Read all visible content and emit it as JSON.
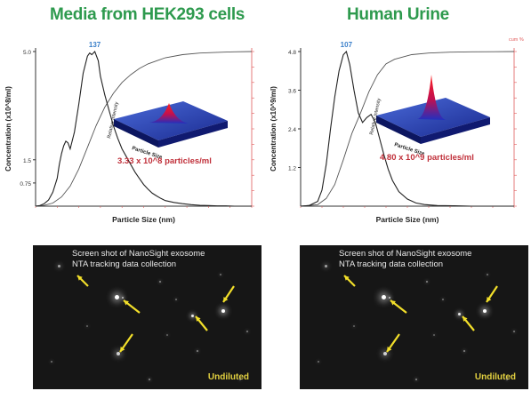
{
  "chart_data": [
    {
      "type": "line",
      "title": "Media from HEK293 cells",
      "xlabel": "Particle Size (nm)",
      "ylabel": "Concentration (x10^8/ml)",
      "y2label": "",
      "xlim": [
        0,
        500
      ],
      "ylim": [
        0,
        5.0
      ],
      "y_ticks": [
        "0.75",
        "1.5",
        "5.0"
      ],
      "peak_label": "137",
      "annotation": "3.33 x 10^8 particles/ml",
      "inset_labels": [
        "Relative Intensity",
        "Particle Size"
      ],
      "series": [
        {
          "values_x": [
            0,
            10,
            20,
            30,
            40,
            50,
            55,
            60,
            65,
            70,
            75,
            80,
            90,
            100,
            110,
            120,
            125,
            130,
            137,
            145,
            150,
            160,
            170,
            180,
            190,
            200,
            210,
            220,
            230,
            240,
            250,
            260,
            270,
            280,
            290,
            300,
            320,
            340,
            360,
            380,
            400,
            420,
            440,
            460,
            480,
            500
          ],
          "values_y": [
            0,
            0.02,
            0.08,
            0.2,
            0.45,
            0.9,
            1.35,
            1.7,
            1.95,
            2.1,
            2.05,
            1.85,
            2.4,
            3.3,
            4.3,
            4.85,
            4.95,
            4.9,
            5.0,
            4.7,
            4.2,
            3.6,
            3.1,
            2.6,
            2.2,
            1.85,
            1.6,
            1.35,
            1.1,
            0.9,
            0.7,
            0.55,
            0.42,
            0.33,
            0.25,
            0.18,
            0.12,
            0.08,
            0.05,
            0.03,
            0.02,
            0.01,
            0.01,
            0.0,
            0.0,
            0.0
          ]
        },
        {
          "values_x": [
            0,
            20,
            40,
            60,
            80,
            100,
            120,
            140,
            160,
            180,
            200,
            220,
            240,
            260,
            280,
            300,
            340,
            380,
            420,
            460,
            500
          ],
          "values_pct": [
            0,
            0.5,
            2,
            6,
            13,
            24,
            38,
            52,
            64,
            73,
            80,
            85,
            89,
            92,
            94,
            96,
            98,
            99,
            99.5,
            99.8,
            100
          ]
        }
      ]
    },
    {
      "type": "line",
      "title": "Human Urine",
      "xlabel": "Particle Size (nm)",
      "ylabel": "Concentration (x10^9/ml)",
      "y2label": "cum %",
      "xlim": [
        0,
        500
      ],
      "ylim": [
        0,
        4.8
      ],
      "y_ticks": [
        "1.2",
        "2.4",
        "3.6",
        "4.8"
      ],
      "peak_label": "107",
      "annotation": "4.80 x 10^9 particles/ml",
      "inset_labels": [
        "Relative Intensity",
        "Particle Size"
      ],
      "series": [
        {
          "values_x": [
            0,
            20,
            40,
            50,
            60,
            70,
            80,
            90,
            100,
            107,
            115,
            125,
            135,
            145,
            155,
            165,
            175,
            185,
            195,
            205,
            215,
            230,
            250,
            270,
            290,
            320,
            360,
            400,
            450,
            500
          ],
          "values_y": [
            0,
            0.02,
            0.15,
            0.5,
            1.3,
            2.4,
            3.4,
            4.2,
            4.7,
            4.8,
            4.4,
            3.6,
            2.9,
            2.6,
            2.75,
            2.85,
            2.6,
            2.1,
            1.6,
            1.15,
            0.8,
            0.45,
            0.22,
            0.1,
            0.05,
            0.02,
            0.01,
            0.0,
            0.0,
            0.0
          ]
        },
        {
          "values_x": [
            0,
            40,
            60,
            80,
            100,
            120,
            140,
            160,
            180,
            200,
            220,
            260,
            300,
            350,
            400,
            450,
            500
          ],
          "values_pct": [
            0,
            1,
            5,
            14,
            30,
            47,
            60,
            74,
            85,
            92,
            95,
            98,
            99,
            99.6,
            99.8,
            99.9,
            100
          ]
        }
      ]
    }
  ],
  "panels": [
    {
      "caption_line1": "Screen shot of NanoSight exosome",
      "caption_line2": "NTA tracking data collection",
      "footer": "Undiluted"
    },
    {
      "caption_line1": "Screen shot of NanoSight exosome",
      "caption_line2": "NTA tracking data collection",
      "footer": "Undiluted"
    }
  ],
  "colors": {
    "title": "#2e9a4e",
    "peak": "#3a7fc9",
    "secondary_axis": "#e05a5a",
    "annotation": "#c0303a",
    "arrow": "#f2df2a"
  }
}
